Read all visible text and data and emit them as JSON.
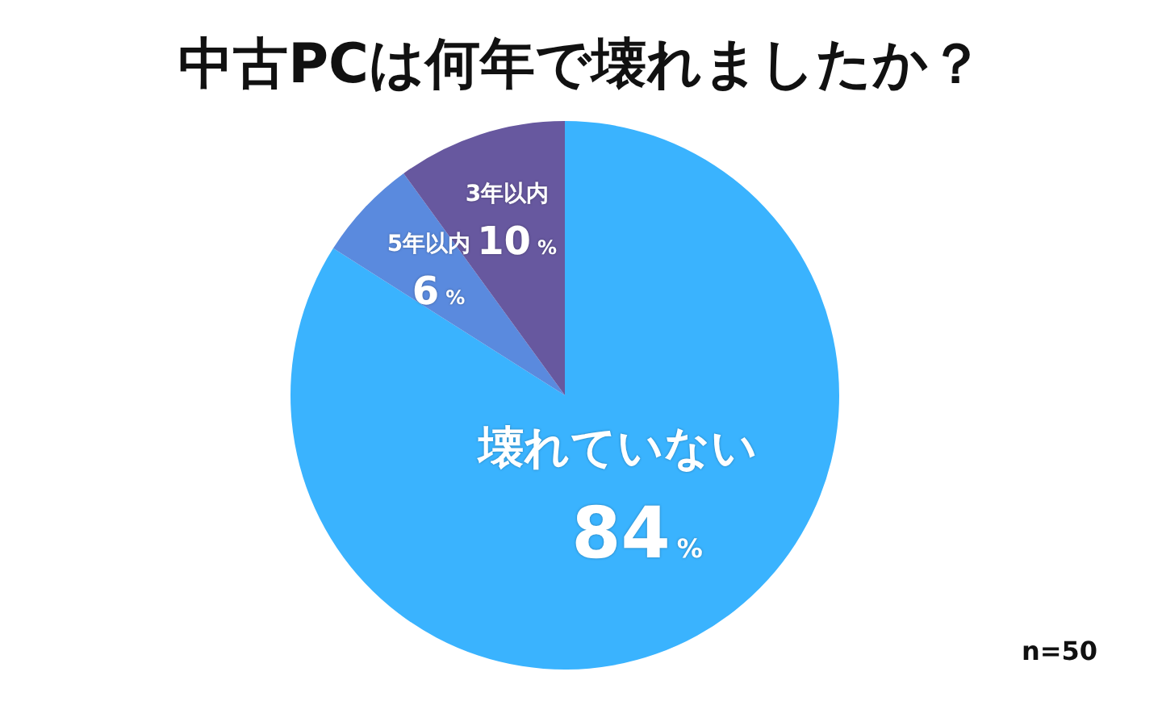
{
  "chart_data": {
    "type": "pie",
    "title": "中古PCは何年で壊れましたか？",
    "categories": [
      "壊れていない",
      "5年以内",
      "3年以内"
    ],
    "values": [
      84,
      6,
      10
    ],
    "colors": [
      "#3ab3fe",
      "#5a8ade",
      "#67589f"
    ],
    "value_labels": [
      "84%",
      "6%",
      "10%"
    ],
    "annotations": [
      "n=50"
    ]
  }
}
